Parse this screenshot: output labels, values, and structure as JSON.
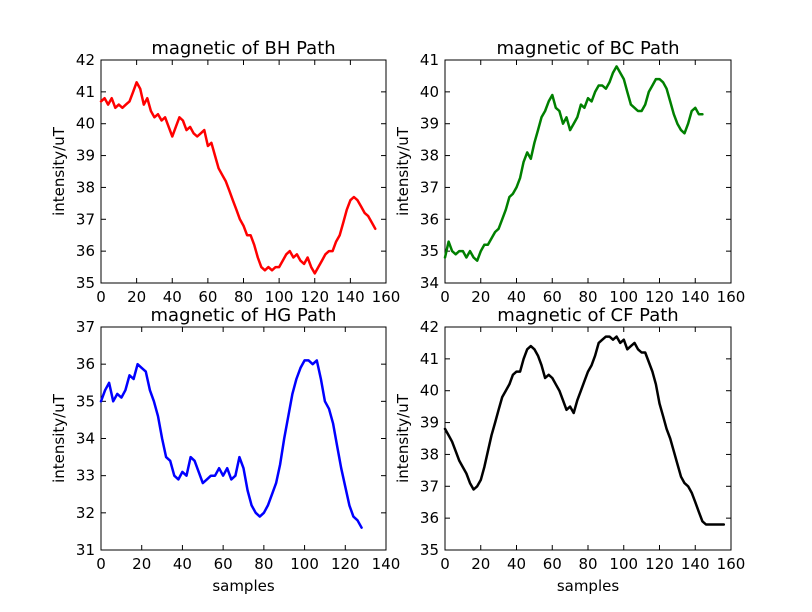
{
  "chart_data": [
    {
      "type": "line",
      "title": "magnetic of BH Path",
      "xlabel": "",
      "ylabel": "intensity/uT",
      "xlim": [
        0,
        160
      ],
      "ylim": [
        35,
        42
      ],
      "xticks": [
        0,
        20,
        40,
        60,
        80,
        100,
        120,
        140,
        160
      ],
      "yticks": [
        35,
        36,
        37,
        38,
        39,
        40,
        41,
        42
      ],
      "grid": false,
      "series": [
        {
          "color": "#ff0000",
          "x": [
            0,
            2,
            4,
            6,
            8,
            10,
            12,
            14,
            16,
            18,
            20,
            22,
            24,
            26,
            28,
            30,
            32,
            34,
            36,
            38,
            40,
            42,
            44,
            46,
            48,
            50,
            52,
            54,
            56,
            58,
            60,
            62,
            64,
            66,
            68,
            70,
            72,
            74,
            76,
            78,
            80,
            82,
            84,
            86,
            88,
            90,
            92,
            94,
            96,
            98,
            100,
            102,
            104,
            106,
            108,
            110,
            112,
            114,
            116,
            118,
            120,
            122,
            124,
            126,
            128,
            130,
            132,
            134,
            136,
            138,
            140,
            142,
            144,
            146,
            148,
            150,
            152,
            154
          ],
          "y": [
            40.7,
            40.8,
            40.6,
            40.8,
            40.5,
            40.6,
            40.5,
            40.6,
            40.7,
            41.0,
            41.3,
            41.1,
            40.6,
            40.8,
            40.4,
            40.2,
            40.3,
            40.1,
            40.2,
            39.9,
            39.6,
            39.9,
            40.2,
            40.1,
            39.8,
            39.9,
            39.7,
            39.6,
            39.7,
            39.8,
            39.3,
            39.4,
            39.0,
            38.6,
            38.4,
            38.2,
            37.9,
            37.6,
            37.3,
            37.0,
            36.8,
            36.5,
            36.5,
            36.2,
            35.8,
            35.5,
            35.4,
            35.5,
            35.4,
            35.5,
            35.5,
            35.7,
            35.9,
            36.0,
            35.8,
            35.9,
            35.7,
            35.6,
            35.8,
            35.5,
            35.3,
            35.5,
            35.7,
            35.9,
            36.0,
            36.0,
            36.3,
            36.5,
            36.9,
            37.3,
            37.6,
            37.7,
            37.6,
            37.4,
            37.2,
            37.1,
            36.9,
            36.7
          ]
        }
      ]
    },
    {
      "type": "line",
      "title": "magnetic of BC Path",
      "xlabel": "",
      "ylabel": "intensity/uT",
      "xlim": [
        0,
        160
      ],
      "ylim": [
        34,
        41
      ],
      "xticks": [
        0,
        20,
        40,
        60,
        80,
        100,
        120,
        140,
        160
      ],
      "yticks": [
        34,
        35,
        36,
        37,
        38,
        39,
        40,
        41
      ],
      "grid": false,
      "series": [
        {
          "color": "#008000",
          "x": [
            0,
            2,
            4,
            6,
            8,
            10,
            12,
            14,
            16,
            18,
            20,
            22,
            24,
            26,
            28,
            30,
            32,
            34,
            36,
            38,
            40,
            42,
            44,
            46,
            48,
            50,
            52,
            54,
            56,
            58,
            60,
            62,
            64,
            66,
            68,
            70,
            72,
            74,
            76,
            78,
            80,
            82,
            84,
            86,
            88,
            90,
            92,
            94,
            96,
            98,
            100,
            102,
            104,
            106,
            108,
            110,
            112,
            114,
            116,
            118,
            120,
            122,
            124,
            126,
            128,
            130,
            132,
            134,
            136,
            138,
            140,
            142,
            144
          ],
          "y": [
            34.8,
            35.3,
            35.0,
            34.9,
            35.0,
            35.0,
            34.8,
            35.0,
            34.8,
            34.7,
            35.0,
            35.2,
            35.2,
            35.4,
            35.6,
            35.7,
            36.0,
            36.3,
            36.7,
            36.8,
            37.0,
            37.3,
            37.8,
            38.1,
            37.9,
            38.4,
            38.8,
            39.2,
            39.4,
            39.7,
            39.9,
            39.5,
            39.4,
            39.0,
            39.2,
            38.8,
            39.0,
            39.2,
            39.6,
            39.5,
            39.8,
            39.7,
            40.0,
            40.2,
            40.2,
            40.1,
            40.3,
            40.6,
            40.8,
            40.6,
            40.4,
            40.0,
            39.6,
            39.5,
            39.4,
            39.4,
            39.6,
            40.0,
            40.2,
            40.4,
            40.4,
            40.3,
            40.1,
            39.7,
            39.3,
            39.0,
            38.8,
            38.7,
            39.0,
            39.4,
            39.5,
            39.3,
            39.3
          ]
        }
      ]
    },
    {
      "type": "line",
      "title": "magnetic of HG Path",
      "xlabel": "samples",
      "ylabel": "intensity/uT",
      "xlim": [
        0,
        140
      ],
      "ylim": [
        31,
        37
      ],
      "xticks": [
        0,
        20,
        40,
        60,
        80,
        100,
        120,
        140
      ],
      "yticks": [
        31,
        32,
        33,
        34,
        35,
        36,
        37
      ],
      "grid": false,
      "series": [
        {
          "color": "#0000ff",
          "x": [
            0,
            2,
            4,
            6,
            8,
            10,
            12,
            14,
            16,
            18,
            20,
            22,
            24,
            26,
            28,
            30,
            32,
            34,
            36,
            38,
            40,
            42,
            44,
            46,
            48,
            50,
            52,
            54,
            56,
            58,
            60,
            62,
            64,
            66,
            68,
            70,
            72,
            74,
            76,
            78,
            80,
            82,
            84,
            86,
            88,
            90,
            92,
            94,
            96,
            98,
            100,
            102,
            104,
            106,
            108,
            110,
            112,
            114,
            116,
            118,
            120,
            122,
            124,
            126,
            128
          ],
          "y": [
            35.0,
            35.3,
            35.5,
            35.0,
            35.2,
            35.1,
            35.3,
            35.7,
            35.6,
            36.0,
            35.9,
            35.8,
            35.3,
            35.0,
            34.6,
            34.0,
            33.5,
            33.4,
            33.0,
            32.9,
            33.1,
            33.0,
            33.5,
            33.4,
            33.1,
            32.8,
            32.9,
            33.0,
            33.0,
            33.2,
            33.0,
            33.2,
            32.9,
            33.0,
            33.5,
            33.2,
            32.6,
            32.2,
            32.0,
            31.9,
            32.0,
            32.2,
            32.5,
            32.8,
            33.3,
            34.0,
            34.6,
            35.2,
            35.6,
            35.9,
            36.1,
            36.1,
            36.0,
            36.1,
            35.6,
            35.0,
            34.8,
            34.4,
            33.8,
            33.2,
            32.7,
            32.2,
            31.9,
            31.8,
            31.6
          ]
        }
      ]
    },
    {
      "type": "line",
      "title": "magnetic of CF Path",
      "xlabel": "samples",
      "ylabel": "intensity/uT",
      "xlim": [
        0,
        160
      ],
      "ylim": [
        35,
        42
      ],
      "xticks": [
        0,
        20,
        40,
        60,
        80,
        100,
        120,
        140,
        160
      ],
      "yticks": [
        35,
        36,
        37,
        38,
        39,
        40,
        41,
        42
      ],
      "grid": false,
      "series": [
        {
          "color": "#000000",
          "x": [
            0,
            2,
            4,
            6,
            8,
            10,
            12,
            14,
            16,
            18,
            20,
            22,
            24,
            26,
            28,
            30,
            32,
            34,
            36,
            38,
            40,
            42,
            44,
            46,
            48,
            50,
            52,
            54,
            56,
            58,
            60,
            62,
            64,
            66,
            68,
            70,
            72,
            74,
            76,
            78,
            80,
            82,
            84,
            86,
            88,
            90,
            92,
            94,
            96,
            98,
            100,
            102,
            104,
            106,
            108,
            110,
            112,
            114,
            116,
            118,
            120,
            122,
            124,
            126,
            128,
            130,
            132,
            134,
            136,
            138,
            140,
            142,
            144,
            146,
            148,
            150,
            152,
            154,
            156
          ],
          "y": [
            38.8,
            38.6,
            38.4,
            38.1,
            37.8,
            37.6,
            37.4,
            37.1,
            36.9,
            37.0,
            37.2,
            37.6,
            38.1,
            38.6,
            39.0,
            39.4,
            39.8,
            40.0,
            40.2,
            40.5,
            40.6,
            40.6,
            41.0,
            41.3,
            41.4,
            41.3,
            41.1,
            40.8,
            40.4,
            40.5,
            40.4,
            40.2,
            40.0,
            39.7,
            39.4,
            39.5,
            39.3,
            39.7,
            40.0,
            40.3,
            40.6,
            40.8,
            41.1,
            41.5,
            41.6,
            41.7,
            41.7,
            41.6,
            41.7,
            41.5,
            41.6,
            41.3,
            41.4,
            41.5,
            41.3,
            41.2,
            41.2,
            40.9,
            40.6,
            40.2,
            39.6,
            39.2,
            38.8,
            38.5,
            38.1,
            37.7,
            37.3,
            37.1,
            37.0,
            36.8,
            36.5,
            36.2,
            35.9,
            35.8,
            35.8,
            35.8,
            35.8,
            35.8,
            35.8
          ]
        }
      ]
    }
  ]
}
